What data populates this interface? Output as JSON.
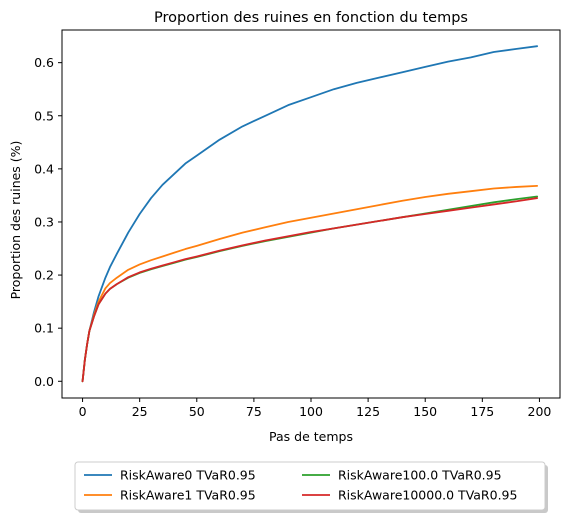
{
  "chart_data": {
    "type": "line",
    "title": "Proportion des ruines en fonction du temps",
    "xlabel": "Pas de temps",
    "ylabel": "Proportion des ruines (%)",
    "xlim": [
      -9,
      209
    ],
    "ylim": [
      -0.0315,
      0.6615
    ],
    "xticks": [
      0,
      25,
      50,
      75,
      100,
      125,
      150,
      175,
      200
    ],
    "yticks": [
      0.0,
      0.1,
      0.2,
      0.3,
      0.4,
      0.5,
      0.6
    ],
    "ytick_labels": [
      "0.0",
      "0.1",
      "0.2",
      "0.3",
      "0.4",
      "0.5",
      "0.6"
    ],
    "grid": false,
    "legend_position": "below",
    "x": [
      0,
      1,
      2,
      3,
      5,
      7,
      10,
      12,
      15,
      20,
      25,
      30,
      35,
      40,
      45,
      50,
      60,
      70,
      80,
      90,
      100,
      110,
      120,
      130,
      140,
      150,
      160,
      170,
      180,
      190,
      199
    ],
    "series": [
      {
        "name": "RiskAware0 TVaR0.95",
        "color": "#1f77b4",
        "values": [
          0.0,
          0.04,
          0.07,
          0.095,
          0.13,
          0.16,
          0.195,
          0.215,
          0.24,
          0.28,
          0.315,
          0.345,
          0.37,
          0.39,
          0.41,
          0.425,
          0.455,
          0.48,
          0.5,
          0.52,
          0.535,
          0.55,
          0.562,
          0.572,
          0.582,
          0.592,
          0.602,
          0.61,
          0.62,
          0.626,
          0.631
        ]
      },
      {
        "name": "RiskAware1 TVaR0.95",
        "color": "#ff7f0e",
        "values": [
          0.0,
          0.04,
          0.07,
          0.095,
          0.125,
          0.15,
          0.175,
          0.185,
          0.195,
          0.21,
          0.22,
          0.228,
          0.235,
          0.242,
          0.249,
          0.255,
          0.268,
          0.28,
          0.29,
          0.3,
          0.308,
          0.316,
          0.324,
          0.332,
          0.34,
          0.347,
          0.353,
          0.358,
          0.363,
          0.366,
          0.368
        ]
      },
      {
        "name": "RiskAware100.0 TVaR0.95",
        "color": "#2ca02c",
        "values": [
          0.0,
          0.04,
          0.07,
          0.095,
          0.122,
          0.145,
          0.165,
          0.174,
          0.183,
          0.195,
          0.204,
          0.211,
          0.217,
          0.223,
          0.229,
          0.234,
          0.245,
          0.255,
          0.264,
          0.272,
          0.28,
          0.288,
          0.295,
          0.302,
          0.309,
          0.316,
          0.323,
          0.33,
          0.337,
          0.343,
          0.348
        ]
      },
      {
        "name": "RiskAware10000.0 TVaR0.95",
        "color": "#d62728",
        "values": [
          0.0,
          0.04,
          0.07,
          0.095,
          0.122,
          0.145,
          0.165,
          0.174,
          0.183,
          0.196,
          0.205,
          0.212,
          0.218,
          0.224,
          0.23,
          0.235,
          0.246,
          0.256,
          0.265,
          0.273,
          0.281,
          0.288,
          0.295,
          0.302,
          0.309,
          0.315,
          0.321,
          0.327,
          0.333,
          0.339,
          0.345
        ]
      }
    ]
  }
}
